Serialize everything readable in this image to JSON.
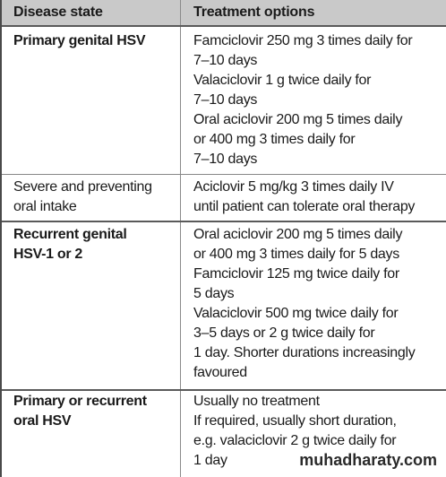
{
  "header": {
    "col1": "Disease state",
    "col2": "Treatment options"
  },
  "rows": [
    {
      "disease": "Primary genital HSV",
      "treatment": "Famciclovir 250 mg 3 times daily for\n7–10 days\nValaciclovir 1 g twice daily for\n7–10 days\nOral aciclovir 200 mg 5 times daily\nor 400 mg 3 times daily for\n7–10 days"
    },
    {
      "disease": "Severe and preventing\noral intake",
      "treatment": "Aciclovir 5 mg/kg 3 times daily IV\nuntil patient can tolerate oral therapy"
    },
    {
      "disease": "Recurrent genital\nHSV-1 or 2",
      "treatment": "Oral aciclovir 200 mg 5 times daily\nor 400 mg 3 times daily for 5 days\nFamciclovir 125 mg twice daily for\n5 days\nValaciclovir 500 mg twice daily for\n3–5 days or 2 g twice daily for\n1 day. Shorter durations increasingly\nfavoured"
    },
    {
      "disease": "Primary or recurrent\noral HSV",
      "treatment": "Usually no treatment\nIf required, usually short duration,\ne.g. valaciclovir 2 g twice daily for\n1 day"
    }
  ],
  "watermark": "muhadharaty.com"
}
